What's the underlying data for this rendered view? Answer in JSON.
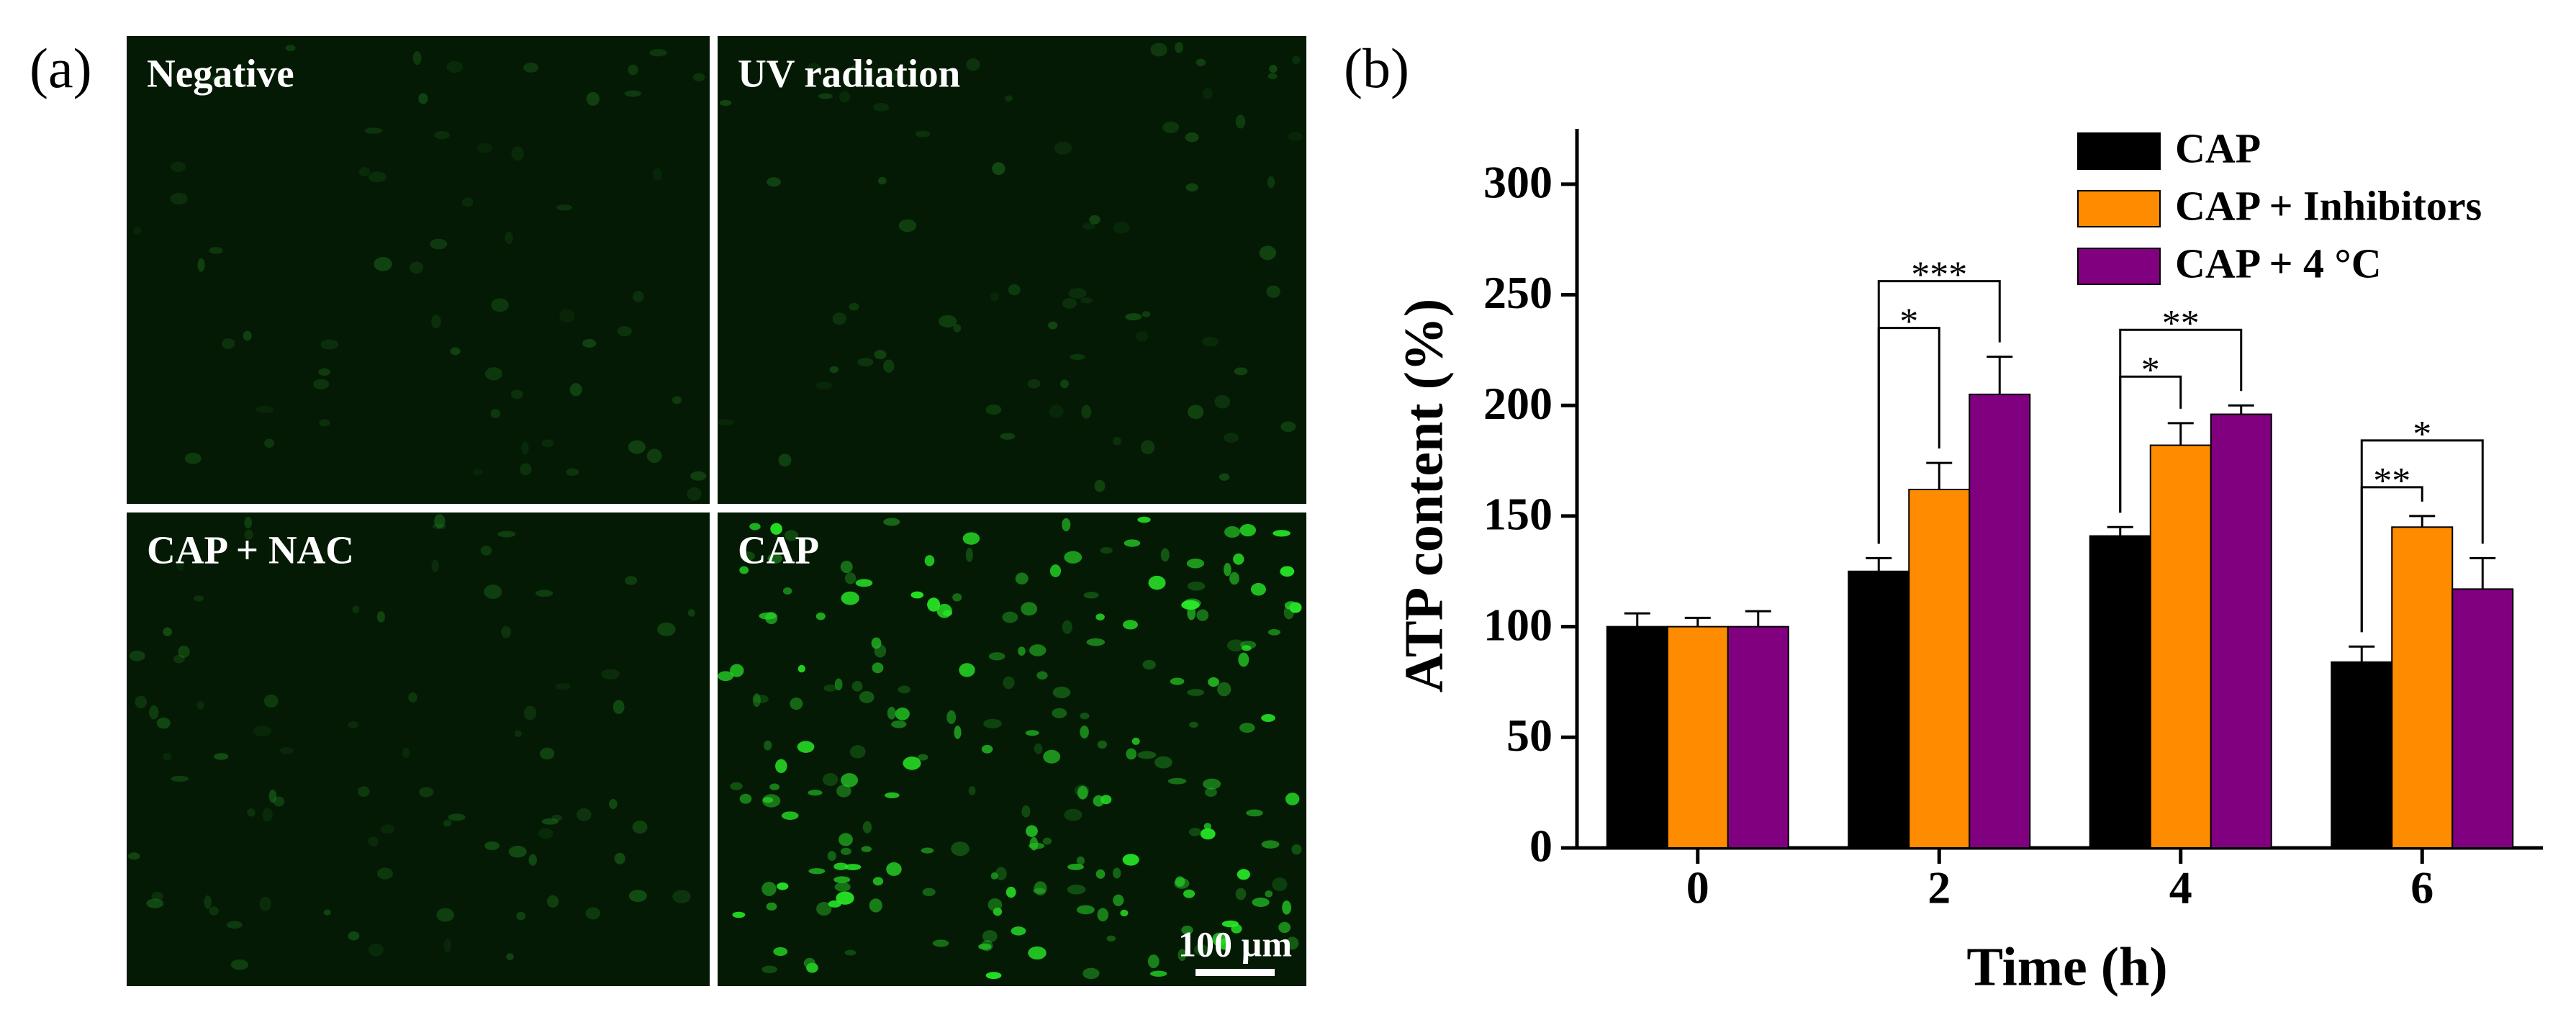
{
  "panel_a": {
    "label": "(a)",
    "images": [
      "Negative",
      "UV radiation",
      "CAP + NAC",
      "CAP"
    ],
    "scale_bar": "100 µm"
  },
  "chart_data": {
    "type": "bar",
    "panel_label": "(b)",
    "x_label": "Time (h)",
    "y_label": "ATP content (%)",
    "categories": [
      "0",
      "2",
      "4",
      "6"
    ],
    "series": [
      {
        "name": "CAP",
        "color": "#000000",
        "values": [
          100,
          125,
          141,
          84
        ],
        "errors": [
          6,
          6,
          4,
          7
        ]
      },
      {
        "name": "CAP + Inhibitors",
        "color": "#ff8c00",
        "values": [
          100,
          162,
          182,
          145
        ],
        "errors": [
          4,
          12,
          10,
          5
        ]
      },
      {
        "name": "CAP + 4 °C",
        "color": "#800080",
        "values": [
          100,
          205,
          196,
          117
        ],
        "errors": [
          7,
          17,
          4,
          14
        ]
      }
    ],
    "annotations": [
      null,
      [
        "*",
        "***"
      ],
      [
        "*",
        "**"
      ],
      [
        "**",
        "*"
      ]
    ],
    "ylim": [
      0,
      325
    ],
    "yticks": [
      0,
      50,
      100,
      150,
      200,
      250,
      300
    ],
    "legend": "upper right",
    "grid": false
  }
}
